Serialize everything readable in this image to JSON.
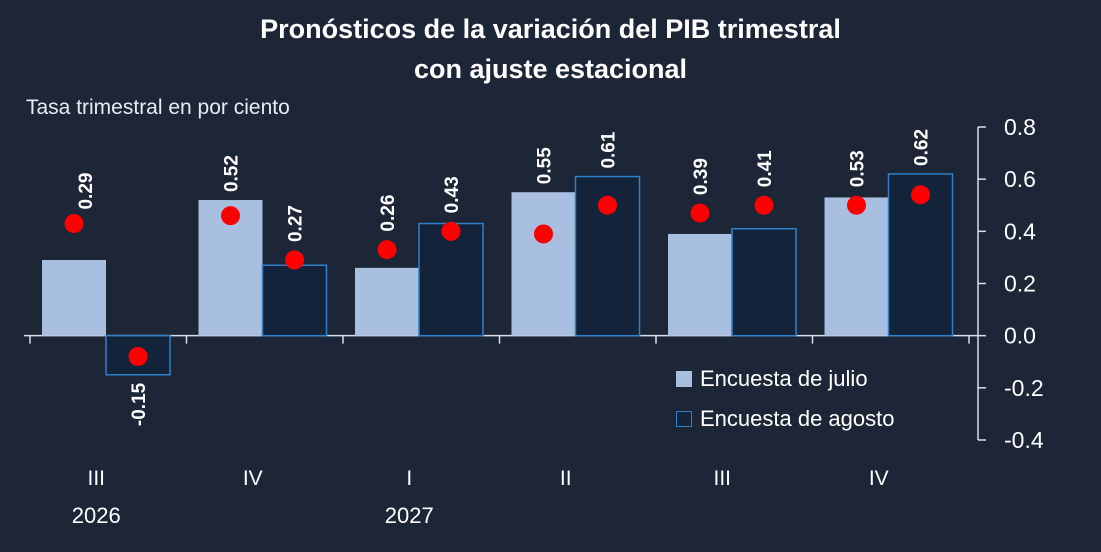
{
  "title_line1": "Pronósticos de la variación del PIB trimestral",
  "title_line2": "con ajuste estacional",
  "colors": {
    "background": "#1d2637",
    "july_bar": "#a8bfdf",
    "august_bar": "#132339",
    "august_border": "#2f80c8",
    "dot": "#ff0000",
    "axis": "#d9dde4"
  },
  "chart_data": {
    "type": "bar",
    "title": "Pronósticos de la variación del PIB trimestral con ajuste estacional",
    "ylabel": "Tasa trimestral en por ciento",
    "ylim": [
      -0.4,
      0.8
    ],
    "yticks": [
      "0.8",
      "0.6",
      "0.4",
      "0.2",
      "0.0",
      "-0.2",
      "-0.4"
    ],
    "y_axis_side": "right",
    "categories": [
      "III",
      "IV",
      "I",
      "II",
      "III",
      "IV"
    ],
    "year_labels": [
      "2026",
      "",
      "2027",
      "",
      "",
      ""
    ],
    "series": [
      {
        "name": "Encuesta de julio",
        "type": "bar",
        "values": [
          0.29,
          0.52,
          0.26,
          0.55,
          0.39,
          0.53
        ],
        "labels": [
          "",
          "0.52",
          "0.26",
          "0.55",
          "0.39",
          "0.53"
        ]
      },
      {
        "name": "Encuesta de agosto",
        "type": "bar",
        "values": [
          -0.15,
          0.27,
          0.43,
          0.61,
          0.41,
          0.62
        ],
        "labels": [
          "-0.15",
          "0.27",
          "0.43",
          "0.61",
          "0.41",
          "0.62"
        ]
      },
      {
        "type": "dot",
        "values": [
          0.43,
          0.46,
          0.33,
          0.39,
          0.47,
          0.5
        ],
        "labels": [
          "0.29",
          "",
          "",
          "",
          "",
          ""
        ]
      },
      {
        "type": "dot",
        "values": [
          -0.08,
          0.29,
          0.4,
          0.5,
          0.5,
          0.54
        ],
        "labels": [
          "",
          "",
          "",
          "",
          "",
          ""
        ]
      }
    ],
    "legend": {
      "position": "bottom-right"
    }
  }
}
